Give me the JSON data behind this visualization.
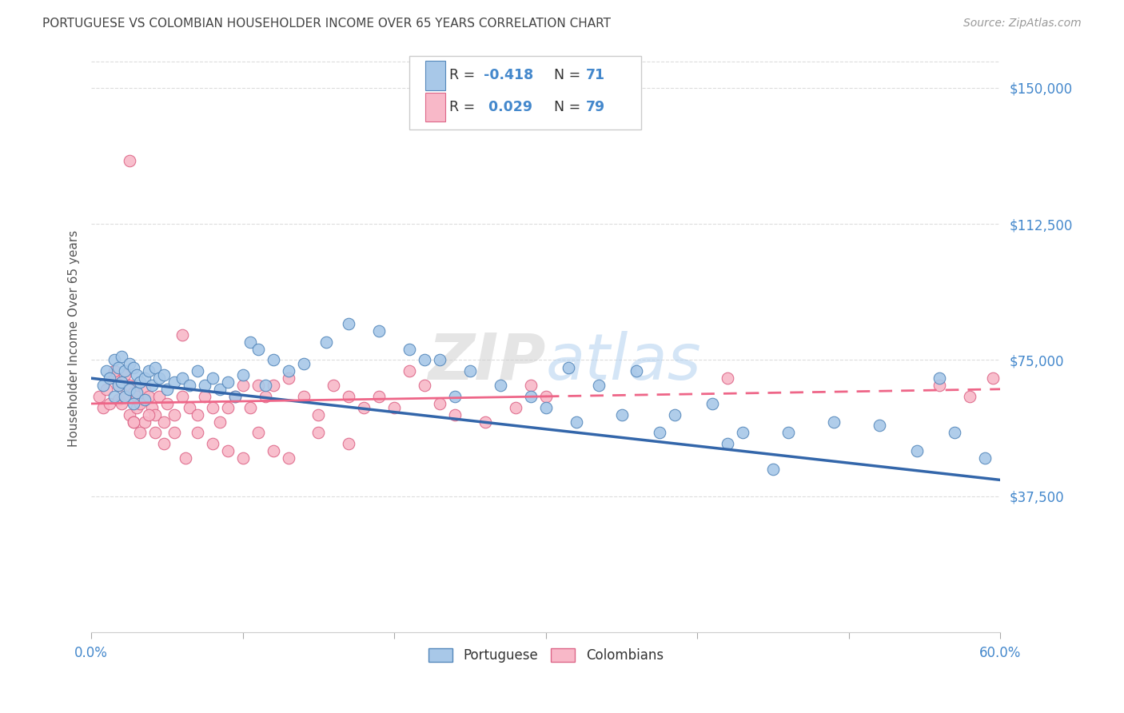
{
  "title": "PORTUGUESE VS COLOMBIAN HOUSEHOLDER INCOME OVER 65 YEARS CORRELATION CHART",
  "source": "Source: ZipAtlas.com",
  "ylabel": "Householder Income Over 65 years",
  "portuguese_R": -0.418,
  "portuguese_N": 71,
  "colombian_R": 0.029,
  "colombian_N": 79,
  "ymin": 0,
  "ymax": 162000,
  "xmin": 0.0,
  "xmax": 0.6,
  "blue_scatter_color": "#a8c8e8",
  "blue_edge_color": "#5588bb",
  "pink_scatter_color": "#f8b8c8",
  "pink_edge_color": "#dd6688",
  "blue_line_color": "#3366aa",
  "pink_line_color": "#ee6688",
  "title_color": "#444444",
  "axis_label_color": "#4488cc",
  "tick_color": "#4488cc",
  "background_color": "#ffffff",
  "grid_color": "#dddddd",
  "watermark": "ZIPatlas",
  "portuguese_x": [
    0.008,
    0.01,
    0.012,
    0.015,
    0.015,
    0.018,
    0.018,
    0.02,
    0.02,
    0.022,
    0.022,
    0.025,
    0.025,
    0.028,
    0.028,
    0.03,
    0.03,
    0.032,
    0.035,
    0.035,
    0.038,
    0.04,
    0.042,
    0.045,
    0.048,
    0.05,
    0.055,
    0.06,
    0.065,
    0.07,
    0.075,
    0.08,
    0.085,
    0.09,
    0.095,
    0.1,
    0.105,
    0.11,
    0.115,
    0.12,
    0.13,
    0.14,
    0.155,
    0.17,
    0.19,
    0.21,
    0.23,
    0.25,
    0.27,
    0.29,
    0.315,
    0.335,
    0.36,
    0.385,
    0.41,
    0.43,
    0.46,
    0.49,
    0.52,
    0.545,
    0.57,
    0.59,
    0.22,
    0.24,
    0.3,
    0.32,
    0.35,
    0.375,
    0.42,
    0.45,
    0.56
  ],
  "portuguese_y": [
    68000,
    72000,
    70000,
    75000,
    65000,
    73000,
    68000,
    76000,
    69000,
    72000,
    65000,
    74000,
    67000,
    73000,
    63000,
    71000,
    66000,
    69000,
    70000,
    64000,
    72000,
    68000,
    73000,
    70000,
    71000,
    67000,
    69000,
    70000,
    68000,
    72000,
    68000,
    70000,
    67000,
    69000,
    65000,
    71000,
    80000,
    78000,
    68000,
    75000,
    72000,
    74000,
    80000,
    85000,
    83000,
    78000,
    75000,
    72000,
    68000,
    65000,
    73000,
    68000,
    72000,
    60000,
    63000,
    55000,
    55000,
    58000,
    57000,
    50000,
    55000,
    48000,
    75000,
    65000,
    62000,
    58000,
    60000,
    55000,
    52000,
    45000,
    70000
  ],
  "colombian_x": [
    0.005,
    0.008,
    0.01,
    0.012,
    0.015,
    0.015,
    0.018,
    0.018,
    0.02,
    0.02,
    0.022,
    0.022,
    0.025,
    0.025,
    0.028,
    0.028,
    0.03,
    0.03,
    0.032,
    0.035,
    0.035,
    0.038,
    0.04,
    0.042,
    0.045,
    0.048,
    0.05,
    0.055,
    0.06,
    0.065,
    0.07,
    0.075,
    0.08,
    0.085,
    0.09,
    0.095,
    0.1,
    0.105,
    0.11,
    0.115,
    0.12,
    0.13,
    0.14,
    0.15,
    0.16,
    0.17,
    0.18,
    0.19,
    0.2,
    0.21,
    0.22,
    0.23,
    0.24,
    0.26,
    0.28,
    0.3,
    0.028,
    0.032,
    0.038,
    0.042,
    0.048,
    0.055,
    0.062,
    0.07,
    0.08,
    0.09,
    0.1,
    0.11,
    0.12,
    0.13,
    0.15,
    0.17,
    0.29,
    0.42,
    0.56,
    0.58,
    0.595,
    0.025,
    0.06
  ],
  "colombian_y": [
    65000,
    62000,
    67000,
    63000,
    70000,
    72000,
    68000,
    64000,
    69000,
    63000,
    71000,
    65000,
    68000,
    60000,
    66000,
    58000,
    65000,
    62000,
    63000,
    67000,
    58000,
    65000,
    62000,
    60000,
    65000,
    58000,
    63000,
    60000,
    65000,
    62000,
    60000,
    65000,
    62000,
    58000,
    62000,
    65000,
    68000,
    62000,
    68000,
    65000,
    68000,
    70000,
    65000,
    60000,
    68000,
    65000,
    62000,
    65000,
    62000,
    72000,
    68000,
    63000,
    60000,
    58000,
    62000,
    65000,
    58000,
    55000,
    60000,
    55000,
    52000,
    55000,
    48000,
    55000,
    52000,
    50000,
    48000,
    55000,
    50000,
    48000,
    55000,
    52000,
    68000,
    70000,
    68000,
    65000,
    70000,
    130000,
    82000
  ]
}
